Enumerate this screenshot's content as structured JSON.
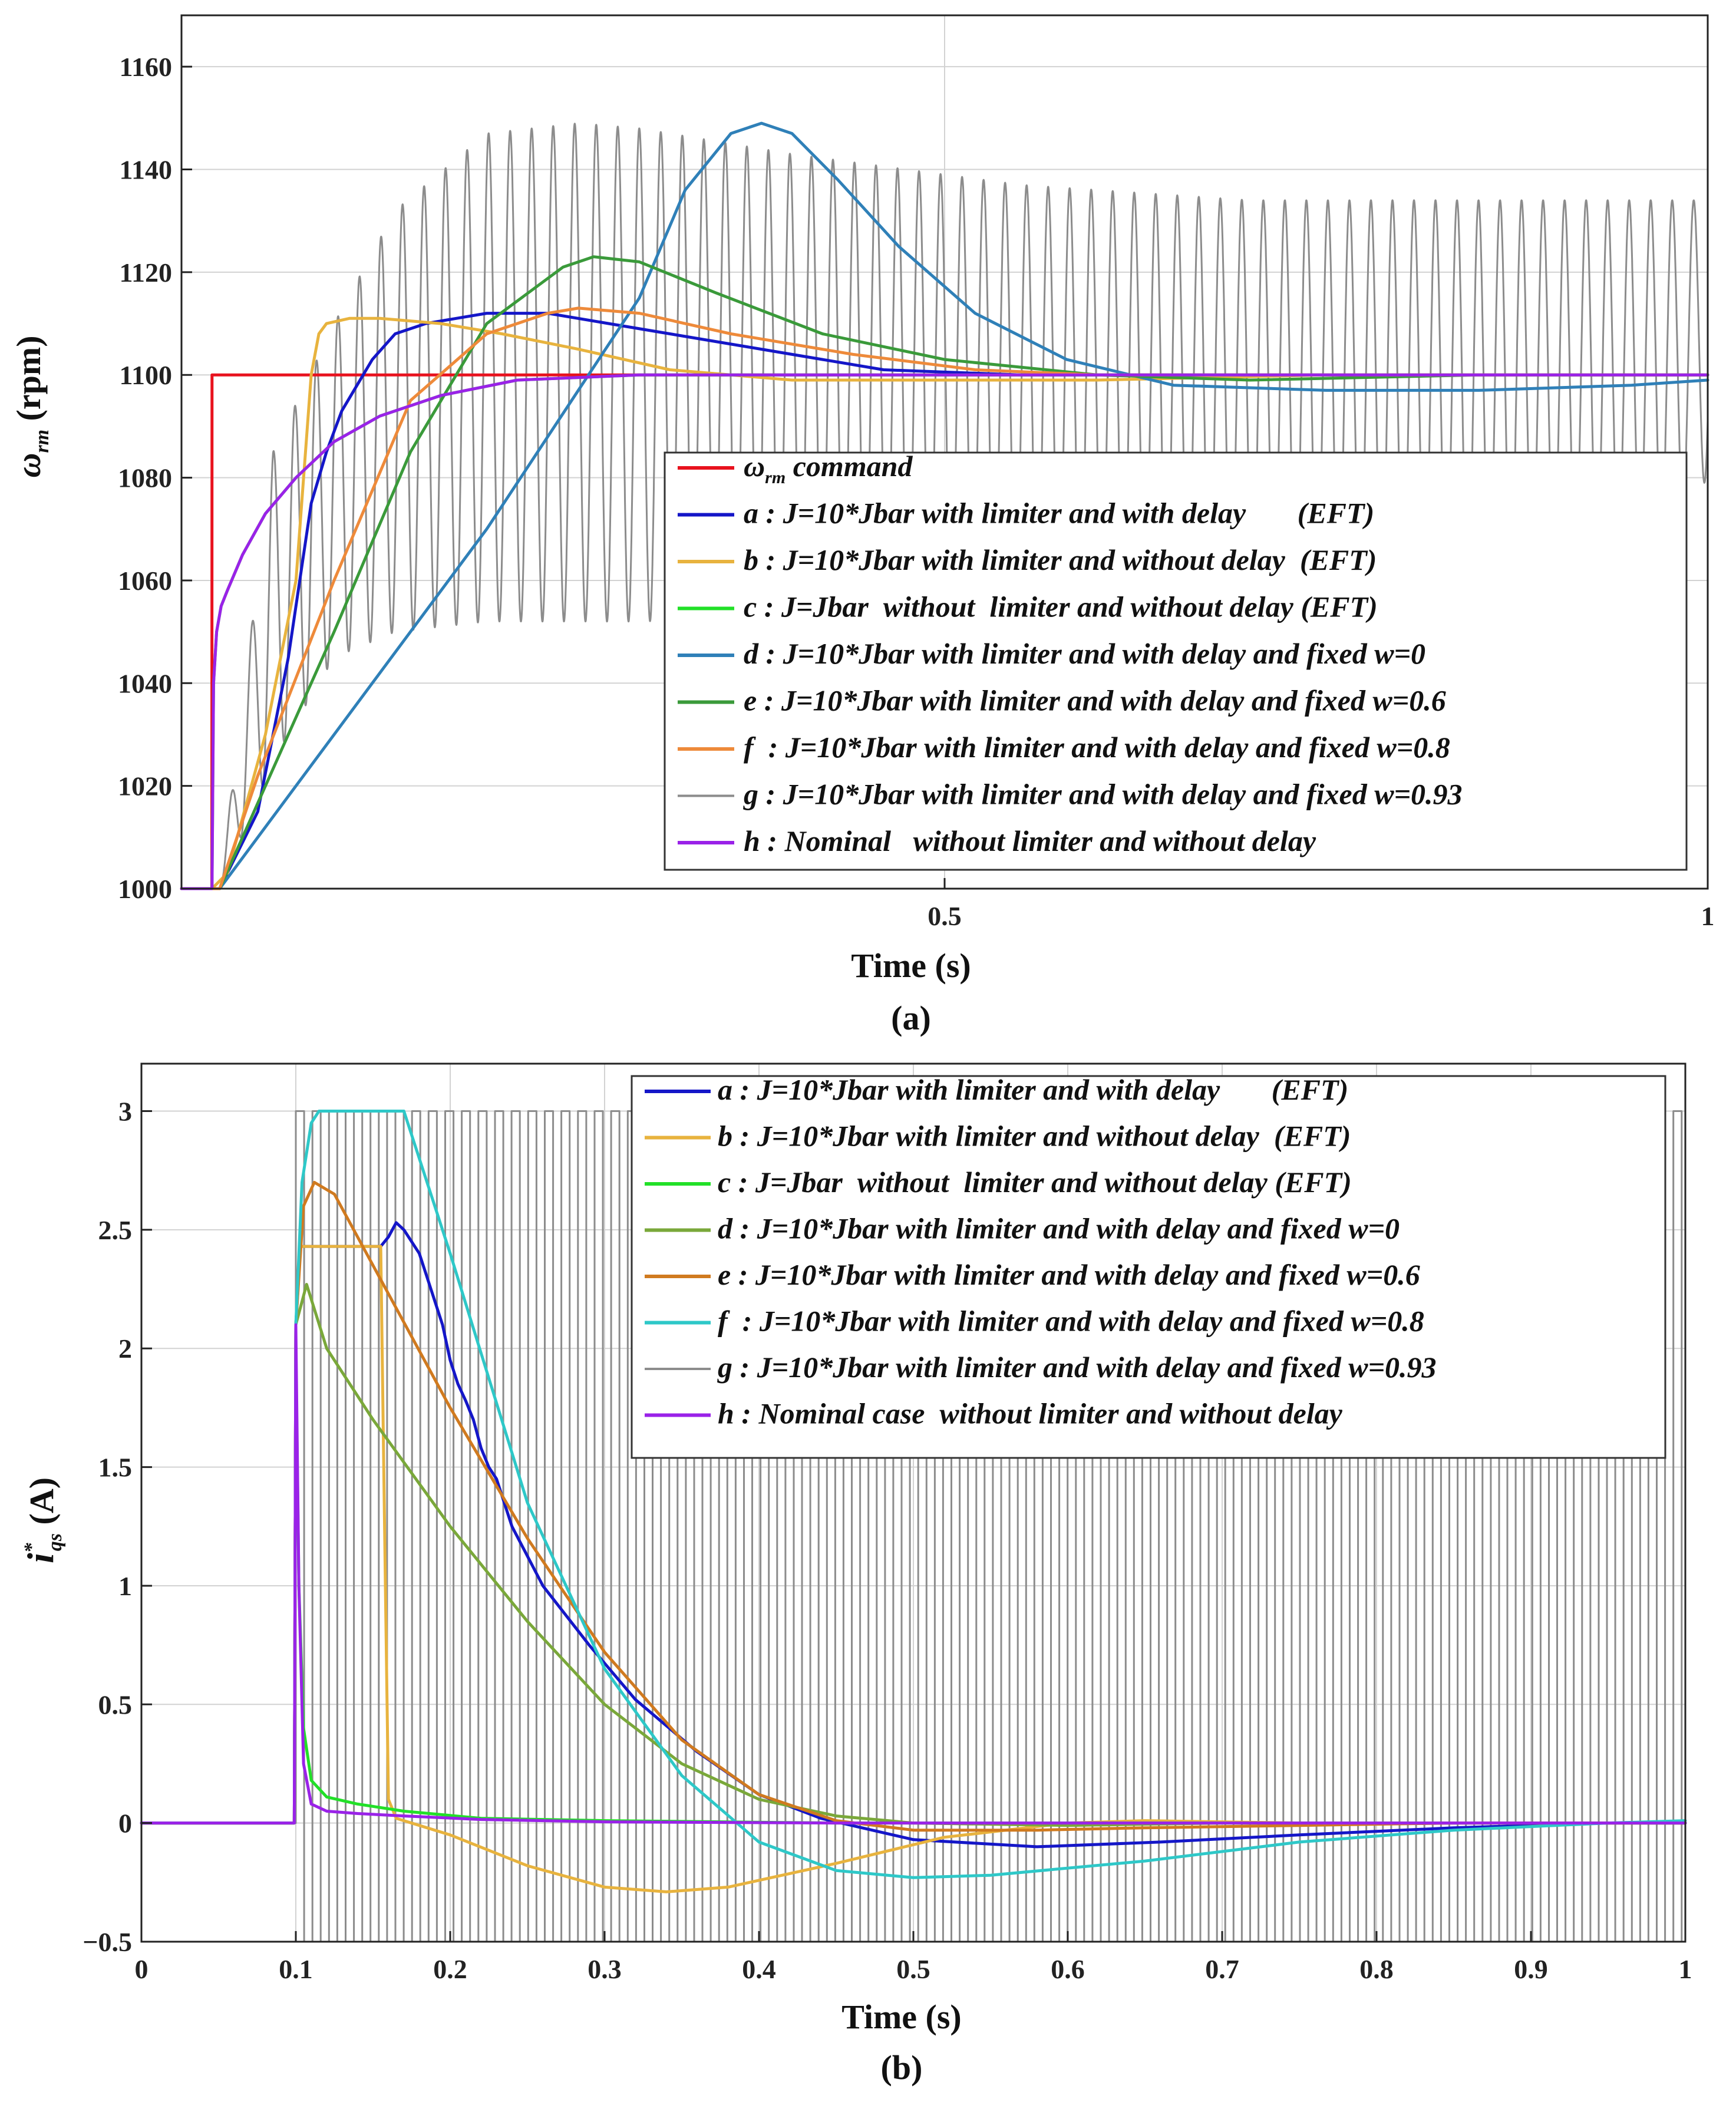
{
  "chart_data": [
    {
      "type": "line",
      "panel_label": "(a)",
      "xlabel": "Time (s)",
      "ylabel": "ω_rm (rpm)",
      "xlim": [
        0,
        1
      ],
      "ylim": [
        1000,
        1170
      ],
      "xticks": [
        0.5,
        1
      ],
      "xtick_labels": [
        "0.5",
        "1"
      ],
      "yticks": [
        1000,
        1020,
        1040,
        1060,
        1080,
        1100,
        1120,
        1140,
        1160
      ],
      "ytick_labels": [
        "1000",
        "1020",
        "1040",
        "1060",
        "1080",
        "1100",
        "1120",
        "1140",
        "1160"
      ],
      "grid": true,
      "legend_position": "bottom-right",
      "series": [
        {
          "key": "cmd",
          "name": "ω_rm command",
          "label_sym": "ω",
          "label_sub": "rm",
          "label_rest": " command",
          "color": "#e8121e",
          "width": 5,
          "x": [
            0,
            0.0199,
            0.02,
            1
          ],
          "y": [
            1000,
            1000,
            1100,
            1100
          ]
        },
        {
          "key": "a",
          "name": "a : J=10*Jbar with limiter and with delay       (EFT)",
          "color": "#1416c8",
          "width": 5,
          "x": [
            0,
            0.02,
            0.025,
            0.05,
            0.07,
            0.085,
            0.095,
            0.105,
            0.115,
            0.125,
            0.14,
            0.16,
            0.18,
            0.2,
            0.24,
            0.28,
            0.32,
            0.38,
            0.46,
            0.55,
            0.65,
            0.8,
            1
          ],
          "y": [
            1000,
            1000,
            1000,
            1015,
            1045,
            1075,
            1085,
            1093,
            1098,
            1103,
            1108,
            1110,
            1111,
            1112,
            1112,
            1110,
            1108,
            1105,
            1101,
            1100,
            1100,
            1100,
            1100
          ]
        },
        {
          "key": "b",
          "name": "b : J=10*Jbar with limiter and without delay  (EFT)",
          "color": "#e8b33e",
          "width": 5,
          "x": [
            0,
            0.02,
            0.03,
            0.055,
            0.075,
            0.08,
            0.085,
            0.09,
            0.095,
            0.11,
            0.13,
            0.17,
            0.21,
            0.26,
            0.32,
            0.4,
            0.5,
            0.6,
            0.75,
            0.9,
            1
          ],
          "y": [
            1000,
            1000,
            1003,
            1030,
            1060,
            1080,
            1100,
            1108,
            1110,
            1111,
            1111,
            1110,
            1108,
            1105,
            1101,
            1099,
            1099,
            1099,
            1100,
            1100,
            1100
          ]
        },
        {
          "key": "c",
          "name": "c : J=Jbar  without  limiter and without delay (EFT)",
          "color": "#22e028",
          "width": 5,
          "x": [
            0,
            0.02,
            0.021,
            0.023,
            0.026,
            0.03,
            0.04,
            0.055,
            0.075,
            0.1,
            0.13,
            0.17,
            0.22,
            0.3,
            0.5,
            1
          ],
          "y": [
            1000,
            1000,
            1040,
            1050,
            1055,
            1058,
            1065,
            1073,
            1080,
            1087,
            1092,
            1096,
            1099,
            1100,
            1100,
            1100
          ]
        },
        {
          "key": "d",
          "name": "d : J=10*Jbar with limiter and with delay and fixed w=0",
          "color": "#2f80b8",
          "width": 5,
          "x": [
            0,
            0.02,
            0.025,
            0.1,
            0.2,
            0.3,
            0.33,
            0.36,
            0.38,
            0.4,
            0.43,
            0.47,
            0.52,
            0.58,
            0.65,
            0.75,
            0.85,
            0.95,
            1
          ],
          "y": [
            1000,
            1000,
            1000,
            1030,
            1070,
            1115,
            1136,
            1147,
            1149,
            1147,
            1138,
            1125,
            1112,
            1103,
            1098,
            1097,
            1097,
            1098,
            1099
          ]
        },
        {
          "key": "e",
          "name": "e : J=10*Jbar with limiter and with delay and fixed w=0.6",
          "color": "#3a9a3a",
          "width": 5,
          "x": [
            0,
            0.02,
            0.025,
            0.1,
            0.15,
            0.2,
            0.25,
            0.27,
            0.3,
            0.35,
            0.42,
            0.5,
            0.6,
            0.7,
            0.85,
            1
          ],
          "y": [
            1000,
            1000,
            1000,
            1050,
            1085,
            1110,
            1121,
            1123,
            1122,
            1116,
            1108,
            1103,
            1100,
            1099,
            1100,
            1100
          ]
        },
        {
          "key": "f",
          "name": "f  : J=10*Jbar with limiter and with delay and fixed w=0.8",
          "color": "#ee8a3a",
          "width": 5,
          "x": [
            0,
            0.02,
            0.025,
            0.05,
            0.1,
            0.15,
            0.2,
            0.24,
            0.26,
            0.3,
            0.36,
            0.44,
            0.52,
            0.6,
            0.7,
            0.85,
            1
          ],
          "y": [
            1000,
            1000,
            1000,
            1022,
            1060,
            1095,
            1108,
            1112,
            1113,
            1112,
            1108,
            1104,
            1101,
            1100,
            1100,
            1100,
            1100
          ]
        },
        {
          "key": "g",
          "name": "g : J=10*Jbar with limiter and with delay and fixed w=0.93",
          "color": "#8c8c8c",
          "width": 3,
          "oscillation": {
            "period": 0.0141,
            "start": 0.025,
            "env_t": [
              0.025,
              0.06,
              0.1,
              0.14,
              0.2,
              0.26,
              0.3,
              0.4,
              0.55,
              0.7,
              0.85,
              0.97,
              1
            ],
            "env_hi": [
              1000,
              1085,
              1110,
              1132,
              1147,
              1149,
              1148,
              1143,
              1137,
              1134,
              1134,
              1134,
              1134
            ],
            "env_lo": [
              1000,
              1025,
              1045,
              1050,
              1052,
              1052,
              1052,
              1053,
              1054,
              1055,
              1056,
              1066,
              1080
            ]
          }
        },
        {
          "key": "h",
          "name": "h : Nominal   without limiter and without delay",
          "color": "#9a22e8",
          "width": 5,
          "x": [
            0,
            0.02,
            0.021,
            0.023,
            0.026,
            0.03,
            0.04,
            0.055,
            0.075,
            0.1,
            0.13,
            0.17,
            0.22,
            0.3,
            0.5,
            1
          ],
          "y": [
            1000,
            1000,
            1040,
            1050,
            1055,
            1058,
            1065,
            1073,
            1080,
            1087,
            1092,
            1096,
            1099,
            1100,
            1100,
            1100
          ]
        }
      ]
    },
    {
      "type": "line",
      "panel_label": "(b)",
      "xlabel": "Time (s)",
      "ylabel": "i*_qs (A)",
      "xlim": [
        0,
        1
      ],
      "ylim": [
        -0.5,
        3.2
      ],
      "xticks": [
        0,
        0.1,
        0.2,
        0.3,
        0.4,
        0.5,
        0.6,
        0.7,
        0.8,
        0.9,
        1
      ],
      "xtick_labels": [
        "0",
        "0.1",
        "0.2",
        "0.3",
        "0.4",
        "0.5",
        "0.6",
        "0.7",
        "0.8",
        "0.9",
        "1"
      ],
      "yticks": [
        -0.5,
        0,
        0.5,
        1,
        1.5,
        2,
        2.5,
        3
      ],
      "ytick_labels": [
        "−0.5",
        "0",
        "0.5",
        "1",
        "1.5",
        "2",
        "2.5",
        "3"
      ],
      "grid": true,
      "legend_position": "top-right",
      "series": [
        {
          "key": "a",
          "name": "a : J=10*Jbar with limiter and with delay       (EFT)",
          "color": "#1416c8",
          "width": 5,
          "x": [
            0,
            0.099,
            0.1,
            0.103,
            0.155,
            0.16,
            0.165,
            0.17,
            0.175,
            0.18,
            0.185,
            0.19,
            0.195,
            0.2,
            0.205,
            0.21,
            0.215,
            0.22,
            0.225,
            0.23,
            0.24,
            0.26,
            0.29,
            0.32,
            0.36,
            0.4,
            0.44,
            0.5,
            0.58,
            0.66,
            0.75,
            0.85,
            0.95,
            1
          ],
          "y": [
            0,
            0,
            2.1,
            2.43,
            2.43,
            2.47,
            2.53,
            2.5,
            2.45,
            2.4,
            2.3,
            2.2,
            2.1,
            1.95,
            1.85,
            1.78,
            1.7,
            1.58,
            1.5,
            1.45,
            1.25,
            1.0,
            0.75,
            0.52,
            0.3,
            0.12,
            0.02,
            -0.07,
            -0.1,
            -0.08,
            -0.05,
            -0.02,
            0,
            0
          ]
        },
        {
          "key": "b",
          "name": "b : J=10*Jbar with limiter and without delay  (EFT)",
          "color": "#e8b33e",
          "width": 5,
          "x": [
            0,
            0.099,
            0.1,
            0.103,
            0.155,
            0.158,
            0.16,
            0.165,
            0.18,
            0.2,
            0.25,
            0.3,
            0.34,
            0.38,
            0.45,
            0.52,
            0.6,
            0.65,
            0.75,
            0.9,
            1
          ],
          "y": [
            0,
            0,
            2.1,
            2.43,
            2.43,
            1.0,
            0.1,
            0.02,
            -0.01,
            -0.05,
            -0.18,
            -0.27,
            -0.29,
            -0.27,
            -0.17,
            -0.06,
            0.0,
            0.01,
            0.0,
            0.0,
            0.0
          ]
        },
        {
          "key": "c",
          "name": "c : J=Jbar  without  limiter and without delay (EFT)",
          "color": "#22e028",
          "width": 5,
          "x": [
            0,
            0.099,
            0.1,
            0.102,
            0.105,
            0.11,
            0.12,
            0.14,
            0.17,
            0.22,
            0.3,
            0.45,
            1
          ],
          "y": [
            0,
            0,
            2.0,
            1.0,
            0.4,
            0.18,
            0.11,
            0.08,
            0.05,
            0.02,
            0.01,
            0.0,
            0.0
          ]
        },
        {
          "key": "d",
          "name": "d : J=10*Jbar with limiter and with delay and fixed w=0",
          "color": "#7aa83a",
          "width": 5,
          "x": [
            0,
            0.099,
            0.1,
            0.107,
            0.12,
            0.15,
            0.2,
            0.25,
            0.3,
            0.35,
            0.4,
            0.45,
            0.5,
            0.6,
            0.7,
            0.8,
            1
          ],
          "y": [
            0,
            0,
            2.1,
            2.27,
            2.0,
            1.7,
            1.25,
            0.85,
            0.5,
            0.25,
            0.1,
            0.03,
            0.0,
            -0.01,
            0.0,
            0.0,
            0.0
          ]
        },
        {
          "key": "e",
          "name": "e : J=10*Jbar with limiter and with delay and fixed w=0.6",
          "color": "#d07a1f",
          "width": 5,
          "x": [
            0,
            0.099,
            0.1,
            0.105,
            0.112,
            0.125,
            0.15,
            0.2,
            0.25,
            0.3,
            0.35,
            0.4,
            0.45,
            0.5,
            0.58,
            0.65,
            0.75,
            0.85,
            1
          ],
          "y": [
            0,
            0,
            2.1,
            2.6,
            2.7,
            2.65,
            2.35,
            1.75,
            1.2,
            0.72,
            0.35,
            0.12,
            0.01,
            -0.03,
            -0.03,
            -0.02,
            -0.01,
            0.0,
            0.0
          ]
        },
        {
          "key": "f",
          "name": "f  : J=10*Jbar with limiter and with delay and fixed w=0.8",
          "color": "#2ec8c8",
          "width": 5,
          "x": [
            0,
            0.099,
            0.1,
            0.104,
            0.11,
            0.115,
            0.17,
            0.2,
            0.25,
            0.3,
            0.35,
            0.4,
            0.45,
            0.5,
            0.55,
            0.65,
            0.75,
            0.85,
            0.95,
            1
          ],
          "y": [
            0,
            0,
            2.1,
            2.7,
            2.95,
            3.0,
            3.0,
            2.4,
            1.35,
            0.65,
            0.2,
            -0.08,
            -0.2,
            -0.23,
            -0.22,
            -0.16,
            -0.08,
            -0.03,
            0.0,
            0.01
          ]
        },
        {
          "key": "g",
          "name": "g : J=10*Jbar with limiter and with delay and fixed w=0.93",
          "color": "#8c8c8c",
          "width": 3,
          "square": {
            "period": 0.01075,
            "start": 0.1,
            "high": 3.0,
            "low": -0.5
          }
        },
        {
          "key": "h",
          "name": "h : Nominal case  without limiter and without delay",
          "color": "#9a22e8",
          "width": 5,
          "x": [
            0,
            0.099,
            0.1,
            0.102,
            0.105,
            0.11,
            0.12,
            0.14,
            0.17,
            0.22,
            0.3,
            0.45,
            1
          ],
          "y": [
            0,
            0,
            2.1,
            1.0,
            0.25,
            0.08,
            0.05,
            0.04,
            0.03,
            0.015,
            0.005,
            0.0,
            0.0
          ]
        }
      ]
    }
  ]
}
